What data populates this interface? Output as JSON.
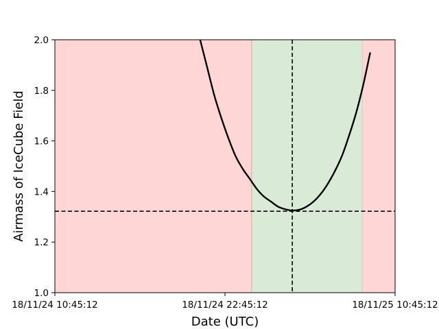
{
  "chart_data": {
    "type": "line",
    "title": "",
    "xlabel": "Date (UTC)",
    "ylabel": "Airmass of IceCube Field",
    "xlim": [
      "18/11/24 10:45:12",
      "18/11/25 10:45:12"
    ],
    "ylim": [
      1.0,
      2.0
    ],
    "x_ticks": [
      "18/11/24 10:45:12",
      "18/11/24 22:45:12",
      "18/11/25 10:45:12"
    ],
    "y_ticks": [
      "1.0",
      "1.2",
      "1.4",
      "1.6",
      "1.8",
      "2.0"
    ],
    "grid": false,
    "series": [
      {
        "type": "line",
        "color": "#000000",
        "x": [
          "18/11/24 21:00",
          "18/11/24 21:30",
          "18/11/24 22:00",
          "18/11/24 22:30",
          "18/11/24 23:00",
          "18/11/24 23:30",
          "18/11/25 00:00",
          "18/11/25 00:30",
          "18/11/25 01:00",
          "18/11/25 01:30",
          "18/11/25 02:00",
          "18/11/25 02:30",
          "18/11/25 03:00",
          "18/11/25 03:30",
          "18/11/25 04:00",
          "18/11/25 04:30",
          "18/11/25 05:00",
          "18/11/25 05:30",
          "18/11/25 06:00",
          "18/11/25 06:30",
          "18/11/25 07:00",
          "18/11/25 07:30",
          "18/11/25 08:00",
          "18/11/25 08:30",
          "18/11/25 09:00"
        ],
        "y": [
          2.0,
          1.89,
          1.78,
          1.69,
          1.61,
          1.54,
          1.49,
          1.45,
          1.41,
          1.38,
          1.36,
          1.34,
          1.33,
          1.325,
          1.328,
          1.34,
          1.36,
          1.39,
          1.43,
          1.48,
          1.54,
          1.62,
          1.71,
          1.82,
          1.95
        ]
      }
    ],
    "annotations": [
      {
        "type": "hline",
        "y": 1.322,
        "style": "dashed",
        "color": "#000000"
      },
      {
        "type": "vline",
        "x": "18/11/25 03:30",
        "style": "dashed",
        "color": "#000000"
      },
      {
        "type": "span",
        "x0": "18/11/24 10:45:12",
        "x1": "18/11/25 00:38",
        "color": "#ffd6d6"
      },
      {
        "type": "span",
        "x0": "18/11/25 00:38",
        "x1": "18/11/25 08:27",
        "color": "#d9ead7"
      },
      {
        "type": "span",
        "x0": "18/11/25 08:27",
        "x1": "18/11/25 10:45:12",
        "color": "#ffd6d6"
      }
    ]
  }
}
